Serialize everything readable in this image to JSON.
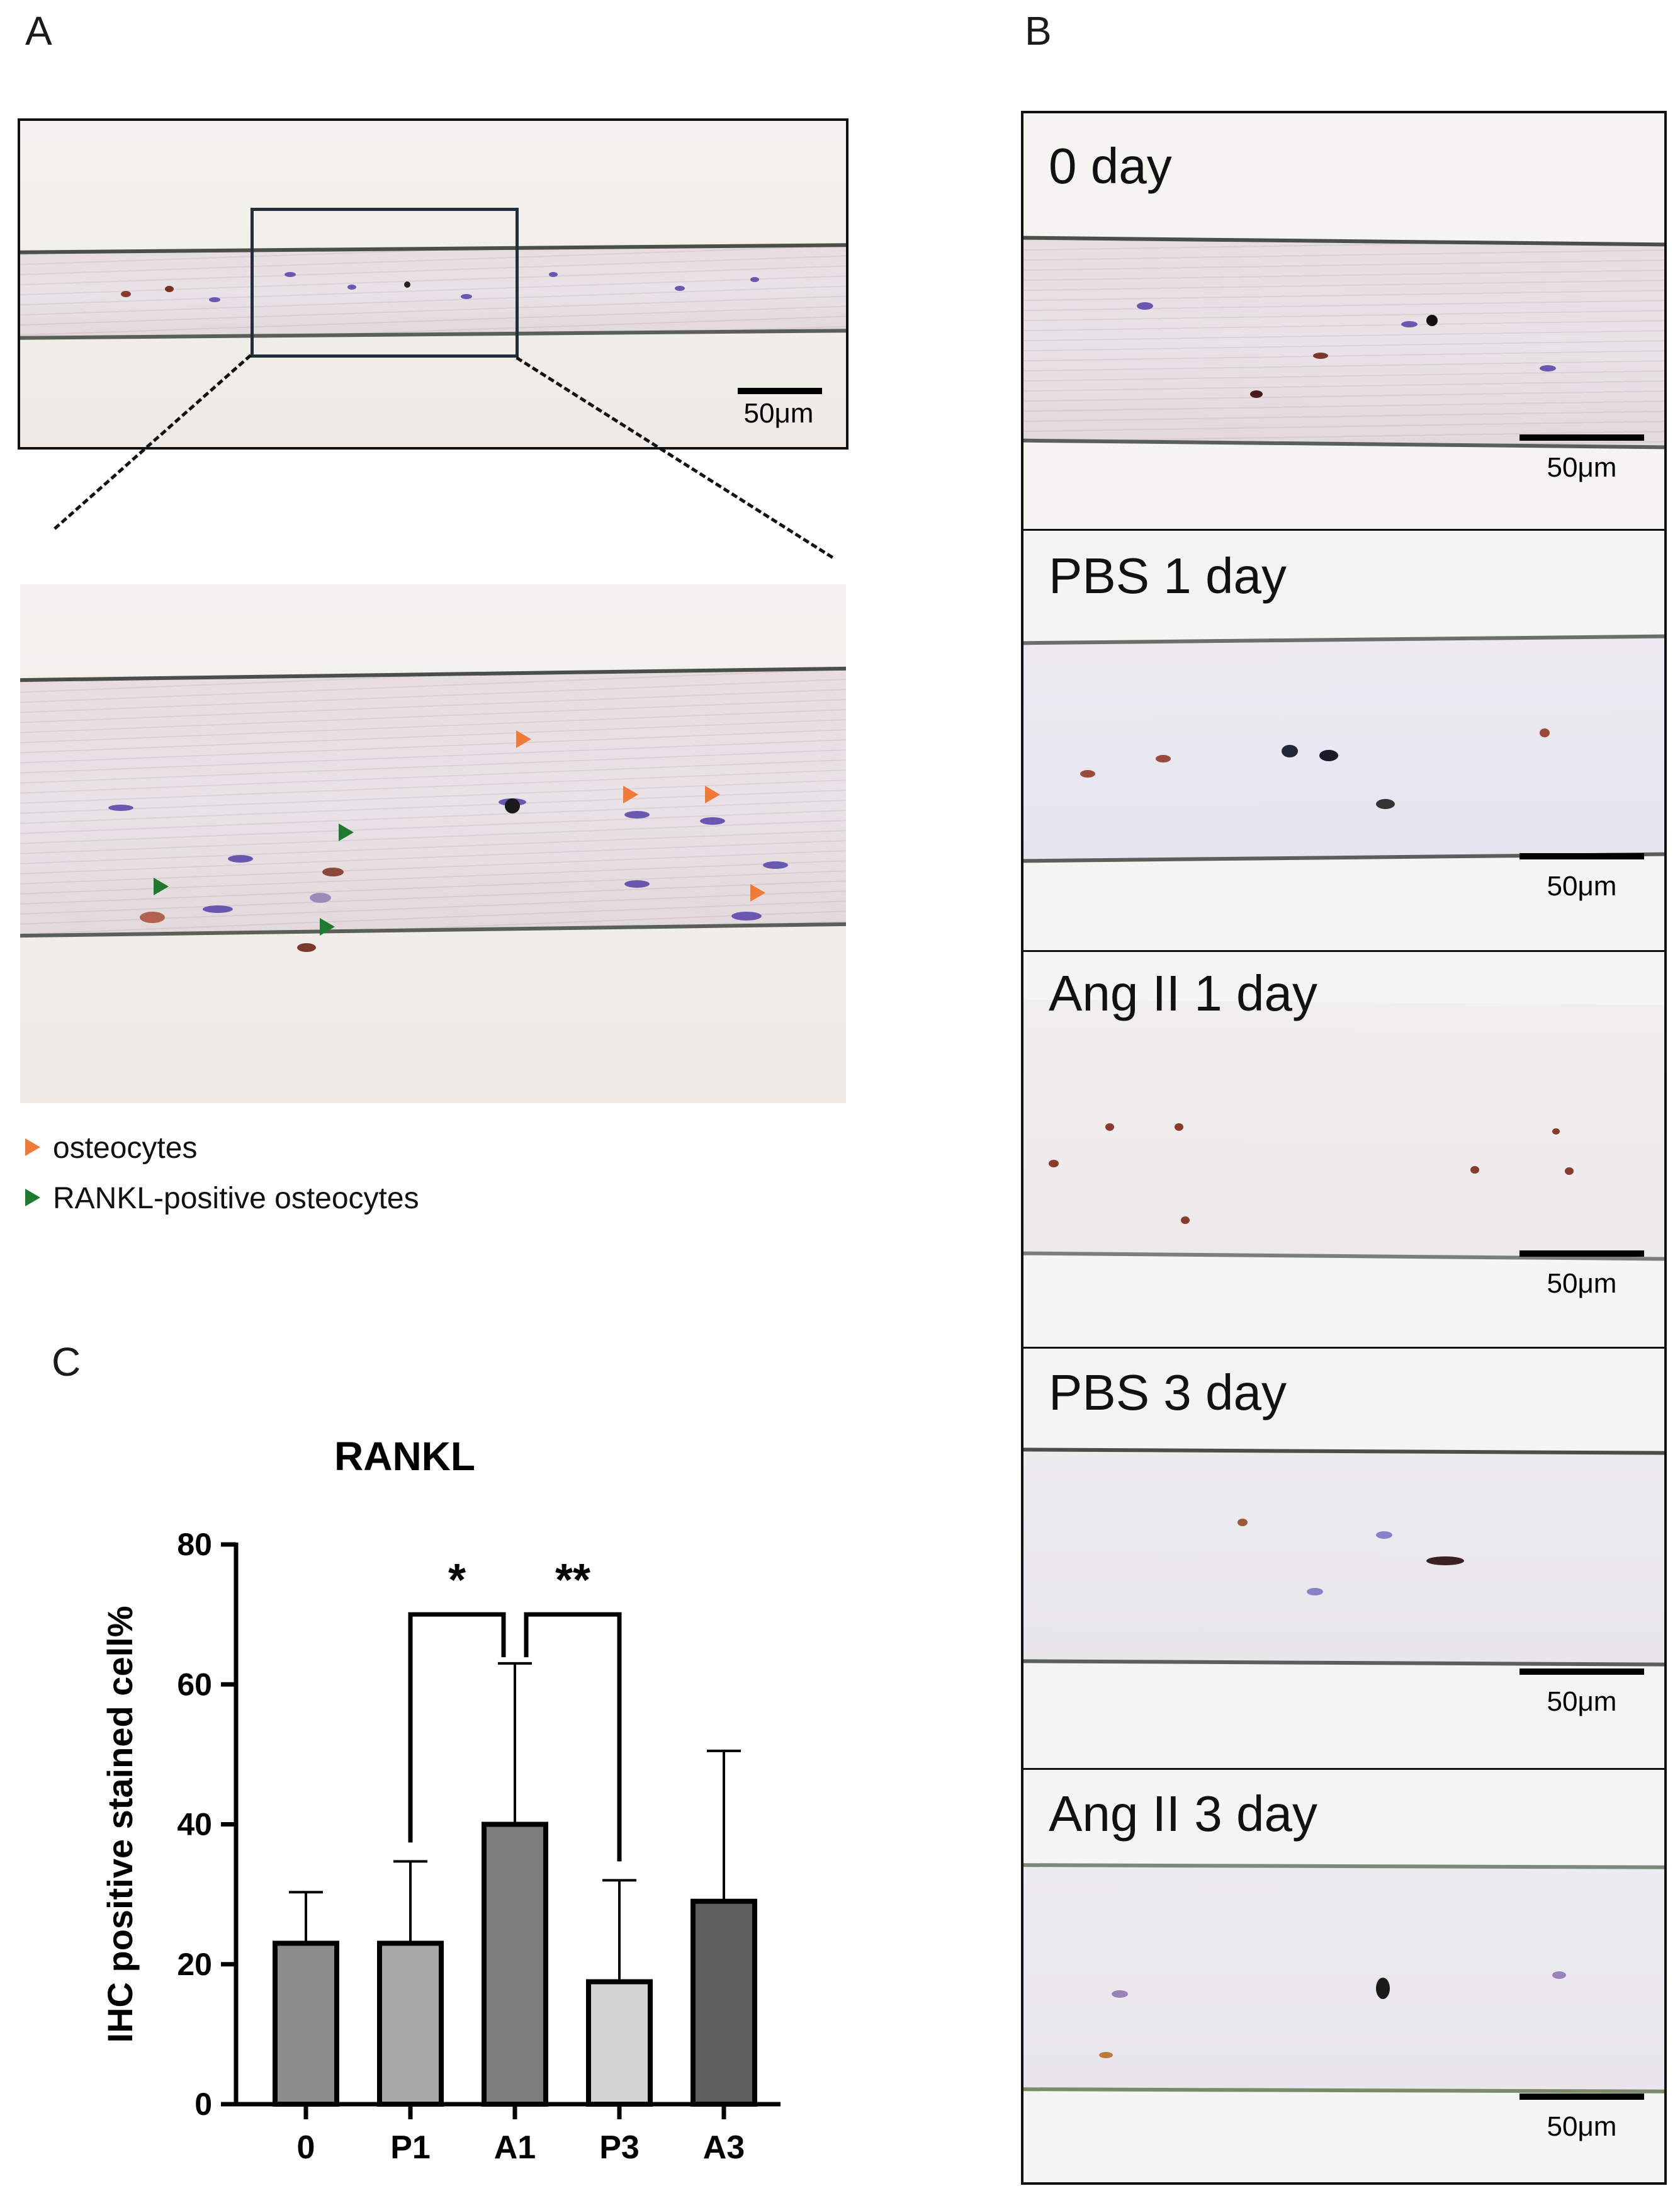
{
  "panels": {
    "a": {
      "letter": "A",
      "scale_label": "50μm"
    },
    "b": {
      "letter": "B",
      "images": [
        {
          "label": "0 day",
          "scale_label": "50μm"
        },
        {
          "label": "PBS 1 day",
          "scale_label": "50μm"
        },
        {
          "label": "Ang II 1 day",
          "scale_label": "50μm"
        },
        {
          "label": "PBS 3 day",
          "scale_label": "50μm"
        },
        {
          "label": "Ang II 3 day",
          "scale_label": "50μm"
        }
      ]
    },
    "c": {
      "letter": "C"
    }
  },
  "legend": {
    "items": [
      {
        "label": "osteocytes",
        "color": "#f07a36"
      },
      {
        "label": "RANKL-positive osteocytes",
        "color": "#1e7a2e"
      }
    ]
  },
  "chart_data": {
    "type": "bar",
    "title": "RANKL",
    "xlabel": "",
    "ylabel": "IHC positive stained cell%",
    "categories": [
      "0",
      "P1",
      "A1",
      "P3",
      "A3"
    ],
    "values": [
      23,
      23,
      40,
      17.5,
      29
    ],
    "errors": [
      7.3,
      11.7,
      23,
      14.5,
      21.5
    ],
    "colors": [
      "#8c8c8c",
      "#a9a9a9",
      "#7d7d7d",
      "#d4d4d4",
      "#5e5e5e"
    ],
    "ylim": [
      0,
      80
    ],
    "yticks": [
      "0",
      "20",
      "40",
      "60",
      "80"
    ],
    "grid": false,
    "significance": [
      {
        "from": "P1",
        "to": "A1",
        "label": "*"
      },
      {
        "from": "A1",
        "to": "P3",
        "label": "**"
      }
    ]
  }
}
